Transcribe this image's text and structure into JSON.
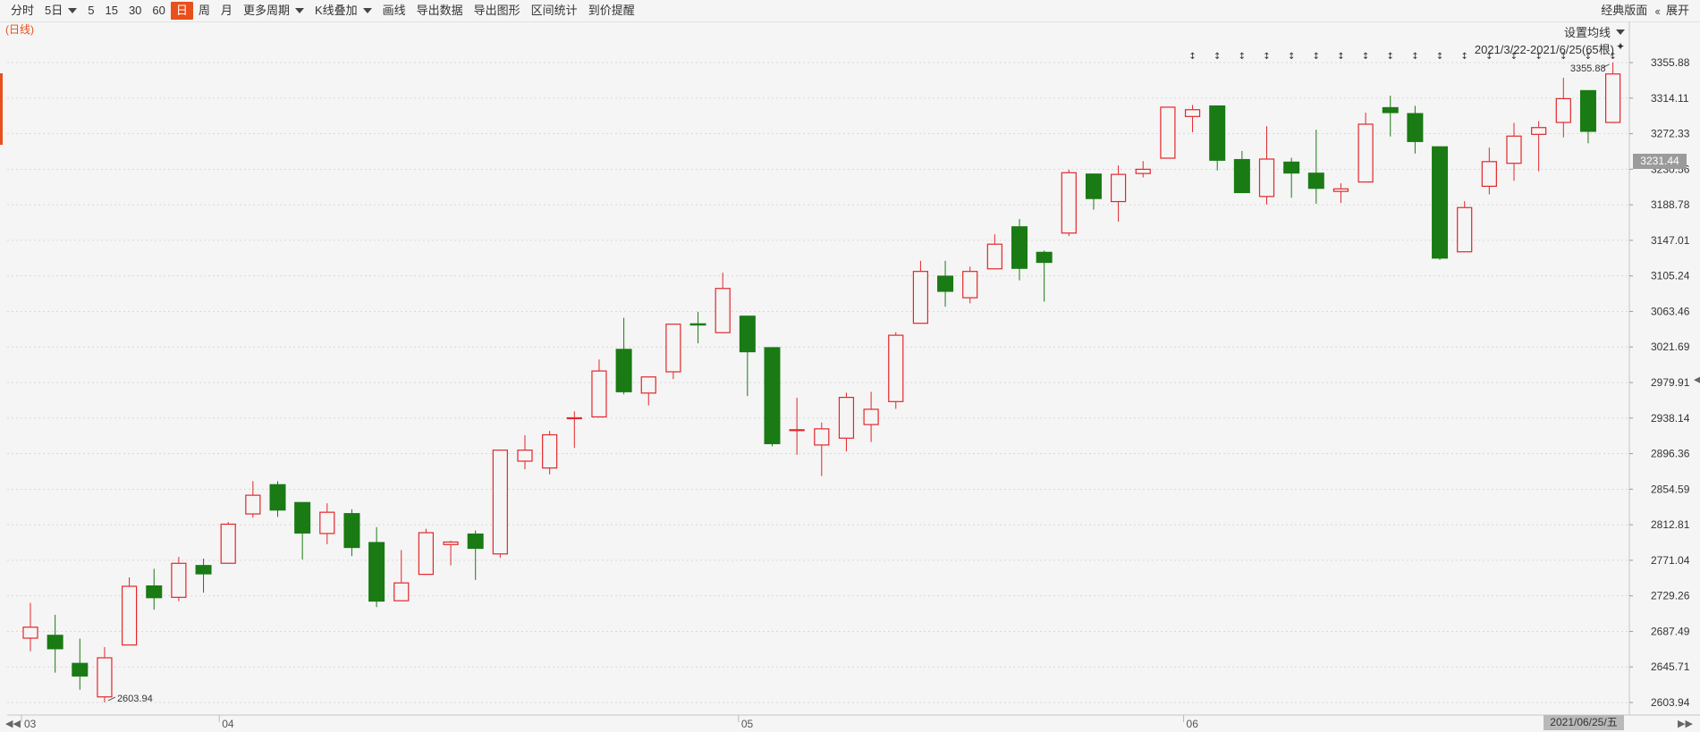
{
  "toolbar": {
    "items": [
      "分时",
      "5日",
      "5",
      "15",
      "30",
      "60",
      "日",
      "周",
      "月",
      "更多周期",
      "K线叠加",
      "画线",
      "导出数据",
      "导出图形",
      "区间统计",
      "到价提醒"
    ],
    "classic_label": "经典版面",
    "expand_label": "展开"
  },
  "period_label": "(日线)",
  "ma_settings_label": "设置均线",
  "range_label": "2021/3/22-2021/6/25(65根)",
  "price_tag": "3231.44",
  "date_tag": "2021/06/25/五",
  "colors": {
    "up": "#e3262a",
    "down": "#1a7a14",
    "accent": "#e8501c"
  },
  "chart_data": {
    "type": "candlestick",
    "y_ticks": [
      "3355.88",
      "3314.11",
      "3272.33",
      "3230.56",
      "3188.78",
      "3147.01",
      "3105.24",
      "3063.46",
      "3021.69",
      "2979.91",
      "2938.14",
      "2896.36",
      "2854.59",
      "2812.81",
      "2771.04",
      "2729.26",
      "2687.49",
      "2645.71",
      "2603.94"
    ],
    "ylim": [
      2603.94,
      3355.88
    ],
    "x_labels": [
      {
        "label": "03",
        "index": 0
      },
      {
        "label": "04",
        "index": 8
      },
      {
        "label": "05",
        "index": 29
      },
      {
        "label": "06",
        "index": 47
      }
    ],
    "high_label": "3355.88",
    "low_label": "2603.94",
    "candles": [
      {
        "open": 2679,
        "close": 2693,
        "high": 2721,
        "low": 2664
      },
      {
        "open": 2683,
        "close": 2667,
        "high": 2707,
        "low": 2639
      },
      {
        "open": 2650,
        "close": 2635,
        "high": 2679,
        "low": 2619
      },
      {
        "open": 2610,
        "close": 2657,
        "high": 2669,
        "low": 2604
      },
      {
        "open": 2671,
        "close": 2741,
        "high": 2751,
        "low": 2671
      },
      {
        "open": 2741,
        "close": 2727,
        "high": 2761,
        "low": 2713
      },
      {
        "open": 2727,
        "close": 2768,
        "high": 2775,
        "low": 2723
      },
      {
        "open": 2765,
        "close": 2755,
        "high": 2773,
        "low": 2733
      },
      {
        "open": 2767,
        "close": 2814,
        "high": 2816,
        "low": 2767
      },
      {
        "open": 2825,
        "close": 2848,
        "high": 2864,
        "low": 2821
      },
      {
        "open": 2860,
        "close": 2830,
        "high": 2864,
        "low": 2822
      },
      {
        "open": 2839,
        "close": 2803,
        "high": 2839,
        "low": 2772
      },
      {
        "open": 2802,
        "close": 2828,
        "high": 2838,
        "low": 2790
      },
      {
        "open": 2826,
        "close": 2786,
        "high": 2831,
        "low": 2776
      },
      {
        "open": 2792,
        "close": 2723,
        "high": 2810,
        "low": 2716
      },
      {
        "open": 2723,
        "close": 2745,
        "high": 2783,
        "low": 2723
      },
      {
        "open": 2754,
        "close": 2804,
        "high": 2808,
        "low": 2754
      },
      {
        "open": 2789,
        "close": 2793,
        "high": 2794,
        "low": 2765
      },
      {
        "open": 2802,
        "close": 2785,
        "high": 2806,
        "low": 2748
      },
      {
        "open": 2778,
        "close": 2901,
        "high": 2901,
        "low": 2774
      },
      {
        "open": 2887,
        "close": 2901,
        "high": 2918,
        "low": 2878
      },
      {
        "open": 2879,
        "close": 2919,
        "high": 2923,
        "low": 2872
      },
      {
        "open": 2938,
        "close": 2939,
        "high": 2946,
        "low": 2903
      },
      {
        "open": 2939,
        "close": 2994,
        "high": 3007,
        "low": 2939
      },
      {
        "open": 3019,
        "close": 2969,
        "high": 3056,
        "low": 2966
      },
      {
        "open": 2967,
        "close": 2987,
        "high": 2987,
        "low": 2953
      },
      {
        "open": 2992,
        "close": 3049,
        "high": 3049,
        "low": 2984
      },
      {
        "open": 3049,
        "close": 3048,
        "high": 3063,
        "low": 3026
      },
      {
        "open": 3038,
        "close": 3091,
        "high": 3109,
        "low": 3038
      },
      {
        "open": 3058,
        "close": 3016,
        "high": 3058,
        "low": 2964
      },
      {
        "open": 3021,
        "close": 2908,
        "high": 3021,
        "low": 2905
      },
      {
        "open": 2925,
        "close": 2925,
        "high": 2962,
        "low": 2895
      },
      {
        "open": 2906,
        "close": 2926,
        "high": 2933,
        "low": 2870
      },
      {
        "open": 2914,
        "close": 2963,
        "high": 2968,
        "low": 2899
      },
      {
        "open": 2930,
        "close": 2949,
        "high": 2969,
        "low": 2910
      },
      {
        "open": 2957,
        "close": 3036,
        "high": 3039,
        "low": 2949
      },
      {
        "open": 3049,
        "close": 3111,
        "high": 3123,
        "low": 3049
      },
      {
        "open": 3105,
        "close": 3087,
        "high": 3123,
        "low": 3069
      },
      {
        "open": 3079,
        "close": 3111,
        "high": 3116,
        "low": 3073
      },
      {
        "open": 3113,
        "close": 3143,
        "high": 3154,
        "low": 3113
      },
      {
        "open": 3163,
        "close": 3114,
        "high": 3172,
        "low": 3100
      },
      {
        "open": 3133,
        "close": 3121,
        "high": 3135,
        "low": 3075
      },
      {
        "open": 3155,
        "close": 3227,
        "high": 3230,
        "low": 3152
      },
      {
        "open": 3225,
        "close": 3196,
        "high": 3225,
        "low": 3183
      },
      {
        "open": 3192,
        "close": 3225,
        "high": 3235,
        "low": 3169
      },
      {
        "open": 3225,
        "close": 3231,
        "high": 3240,
        "low": 3221
      },
      {
        "open": 3243,
        "close": 3304,
        "high": 3304,
        "low": 3243
      },
      {
        "open": 3292,
        "close": 3301,
        "high": 3306,
        "low": 3274
      },
      {
        "open": 3305,
        "close": 3241,
        "high": 3305,
        "low": 3229
      },
      {
        "open": 3242,
        "close": 3203,
        "high": 3252,
        "low": 3203
      },
      {
        "open": 3198,
        "close": 3243,
        "high": 3281,
        "low": 3189
      },
      {
        "open": 3239,
        "close": 3226,
        "high": 3244,
        "low": 3197
      },
      {
        "open": 3226,
        "close": 3208,
        "high": 3277,
        "low": 3190
      },
      {
        "open": 3204,
        "close": 3208,
        "high": 3214,
        "low": 3191
      },
      {
        "open": 3215,
        "close": 3284,
        "high": 3297,
        "low": 3215
      },
      {
        "open": 3303,
        "close": 3297,
        "high": 3317,
        "low": 3269
      },
      {
        "open": 3296,
        "close": 3263,
        "high": 3305,
        "low": 3249
      },
      {
        "open": 3257,
        "close": 3126,
        "high": 3257,
        "low": 3124
      },
      {
        "open": 3133,
        "close": 3186,
        "high": 3193,
        "low": 3133
      },
      {
        "open": 3210,
        "close": 3240,
        "high": 3256,
        "low": 3201
      },
      {
        "open": 3237,
        "close": 3270,
        "high": 3285,
        "low": 3217
      },
      {
        "open": 3271,
        "close": 3280,
        "high": 3287,
        "low": 3228
      },
      {
        "open": 3285,
        "close": 3314,
        "high": 3338,
        "low": 3268
      },
      {
        "open": 3323,
        "close": 3275,
        "high": 3323,
        "low": 3261
      },
      {
        "open": 3285,
        "close": 3343,
        "high": 3356,
        "low": 3285
      }
    ]
  }
}
